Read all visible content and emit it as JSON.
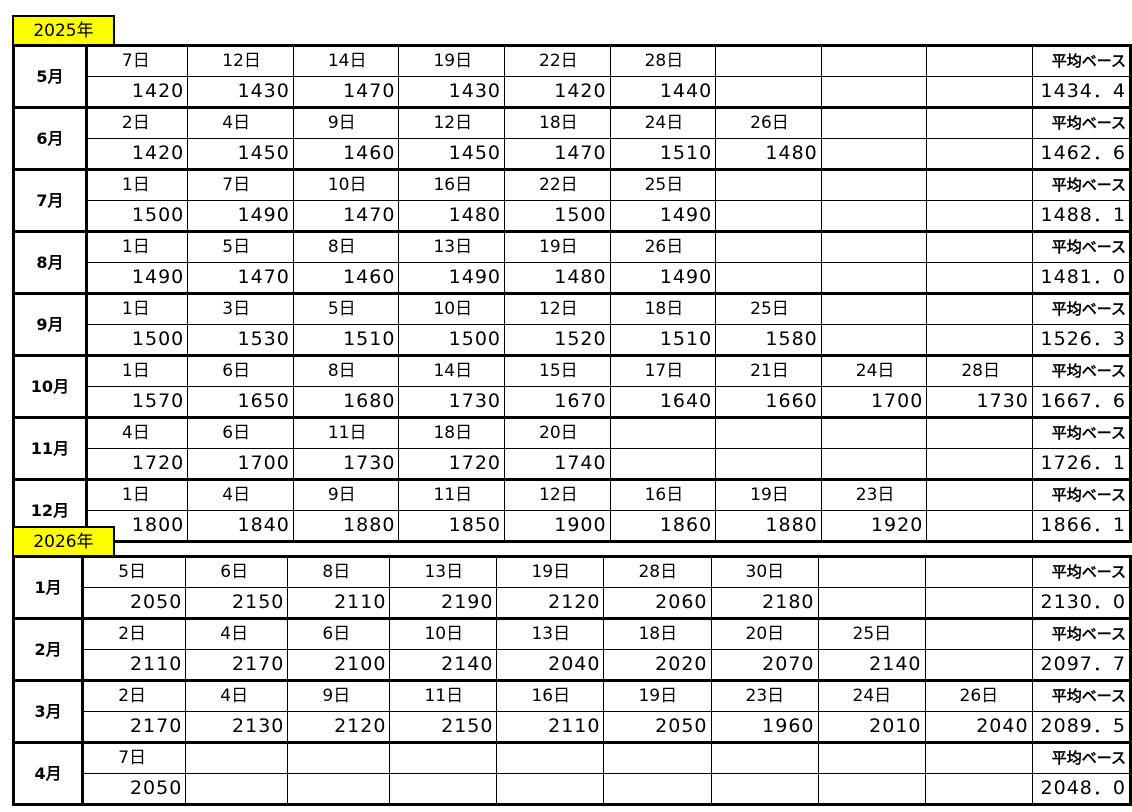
{
  "avg_label": "平均ベース",
  "years": [
    {
      "label": "2025年",
      "months": [
        {
          "month": "5月",
          "days": [
            "7日",
            "12日",
            "14日",
            "19日",
            "22日",
            "28日"
          ],
          "values": [
            "1420",
            "1430",
            "1470",
            "1430",
            "1420",
            "1440"
          ],
          "avg": "1434．4"
        },
        {
          "month": "6月",
          "days": [
            "2日",
            "4日",
            "9日",
            "12日",
            "18日",
            "24日",
            "26日"
          ],
          "values": [
            "1420",
            "1450",
            "1460",
            "1450",
            "1470",
            "1510",
            "1480"
          ],
          "avg": "1462．6"
        },
        {
          "month": "7月",
          "days": [
            "1日",
            "7日",
            "10日",
            "16日",
            "22日",
            "25日"
          ],
          "values": [
            "1500",
            "1490",
            "1470",
            "1480",
            "1500",
            "1490"
          ],
          "avg": "1488．1"
        },
        {
          "month": "8月",
          "days": [
            "1日",
            "5日",
            "8日",
            "13日",
            "19日",
            "26日"
          ],
          "values": [
            "1490",
            "1470",
            "1460",
            "1490",
            "1480",
            "1490"
          ],
          "avg": "1481．0"
        },
        {
          "month": "9月",
          "days": [
            "1日",
            "3日",
            "5日",
            "10日",
            "12日",
            "18日",
            "25日"
          ],
          "values": [
            "1500",
            "1530",
            "1510",
            "1500",
            "1520",
            "1510",
            "1580"
          ],
          "avg": "1526．3"
        },
        {
          "month": "10月",
          "days": [
            "1日",
            "6日",
            "8日",
            "14日",
            "15日",
            "17日",
            "21日",
            "24日",
            "28日"
          ],
          "values": [
            "1570",
            "1650",
            "1680",
            "1730",
            "1670",
            "1640",
            "1660",
            "1700",
            "1730"
          ],
          "avg": "1667．6"
        },
        {
          "month": "11月",
          "days": [
            "4日",
            "6日",
            "11日",
            "18日",
            "20日"
          ],
          "values": [
            "1720",
            "1700",
            "1730",
            "1720",
            "1740"
          ],
          "avg": "1726．1"
        },
        {
          "month": "12月",
          "days": [
            "1日",
            "4日",
            "9日",
            "11日",
            "12日",
            "16日",
            "19日",
            "23日"
          ],
          "values": [
            "1800",
            "1840",
            "1880",
            "1850",
            "1900",
            "1860",
            "1880",
            "1920"
          ],
          "avg": "1866．1"
        }
      ]
    },
    {
      "label": "2026年",
      "months": [
        {
          "month": "1月",
          "days": [
            "5日",
            "6日",
            "8日",
            "13日",
            "19日",
            "28日",
            "30日"
          ],
          "values": [
            "2050",
            "2150",
            "2110",
            "2190",
            "2120",
            "2060",
            "2180"
          ],
          "avg": "2130．0"
        },
        {
          "month": "2月",
          "days": [
            "2日",
            "4日",
            "6日",
            "10日",
            "13日",
            "18日",
            "20日",
            "25日"
          ],
          "values": [
            "2110",
            "2170",
            "2100",
            "2140",
            "2040",
            "2020",
            "2070",
            "2140"
          ],
          "avg": "2097．7"
        },
        {
          "month": "3月",
          "days": [
            "2日",
            "4日",
            "9日",
            "11日",
            "16日",
            "19日",
            "23日",
            "24日",
            "26日"
          ],
          "values": [
            "2170",
            "2130",
            "2120",
            "2150",
            "2110",
            "2050",
            "1960",
            "2010",
            "2040"
          ],
          "avg": "2089．5"
        },
        {
          "month": "4月",
          "days": [
            "7日"
          ],
          "values": [
            "2050"
          ],
          "avg": "2048．0"
        }
      ]
    }
  ]
}
